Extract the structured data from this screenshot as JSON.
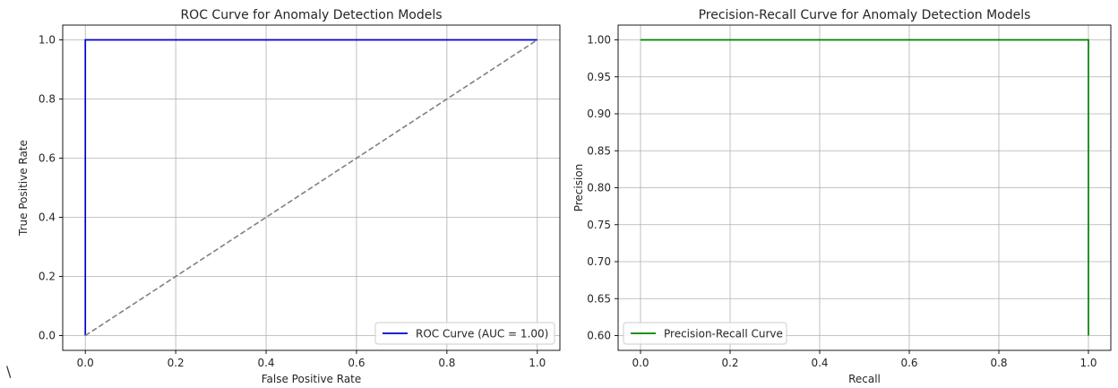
{
  "stray_mark": "\\",
  "chart_data": [
    {
      "type": "line",
      "title": "ROC Curve for Anomaly Detection Models",
      "xlabel": "False Positive Rate",
      "ylabel": "True Positive Rate",
      "xlim": [
        -0.05,
        1.05
      ],
      "ylim": [
        -0.05,
        1.05
      ],
      "xticks": [
        0.0,
        0.2,
        0.4,
        0.6,
        0.8,
        1.0
      ],
      "yticks": [
        0.0,
        0.2,
        0.4,
        0.6,
        0.8,
        1.0
      ],
      "xtick_labels": [
        "0.0",
        "0.2",
        "0.4",
        "0.6",
        "0.8",
        "1.0"
      ],
      "ytick_labels": [
        "0.0",
        "0.2",
        "0.4",
        "0.6",
        "0.8",
        "1.0"
      ],
      "grid": true,
      "legend_position": "lower right",
      "series": [
        {
          "name": "ROC Curve (AUC = 1.00)",
          "color": "#0000cc",
          "style": "solid",
          "x": [
            0.0,
            0.0,
            1.0
          ],
          "y": [
            0.0,
            1.0,
            1.0
          ]
        },
        {
          "color": "#808080",
          "style": "dashed",
          "x": [
            0.0,
            1.0
          ],
          "y": [
            0.0,
            1.0
          ]
        }
      ]
    },
    {
      "type": "line",
      "title": "Precision-Recall Curve for Anomaly Detection Models",
      "xlabel": "Recall",
      "ylabel": "Precision",
      "xlim": [
        -0.05,
        1.05
      ],
      "ylim": [
        0.58,
        1.02
      ],
      "xticks": [
        0.0,
        0.2,
        0.4,
        0.6,
        0.8,
        1.0
      ],
      "yticks": [
        0.6,
        0.65,
        0.7,
        0.75,
        0.8,
        0.85,
        0.9,
        0.95,
        1.0
      ],
      "xtick_labels": [
        "0.0",
        "0.2",
        "0.4",
        "0.6",
        "0.8",
        "1.0"
      ],
      "ytick_labels": [
        "0.60",
        "0.65",
        "0.70",
        "0.75",
        "0.80",
        "0.85",
        "0.90",
        "0.95",
        "1.00"
      ],
      "grid": true,
      "legend_position": "lower left",
      "series": [
        {
          "name": "Precision-Recall Curve",
          "color": "#008000",
          "style": "solid",
          "x": [
            0.0,
            1.0,
            1.0
          ],
          "y": [
            1.0,
            1.0,
            0.6
          ]
        }
      ]
    }
  ]
}
